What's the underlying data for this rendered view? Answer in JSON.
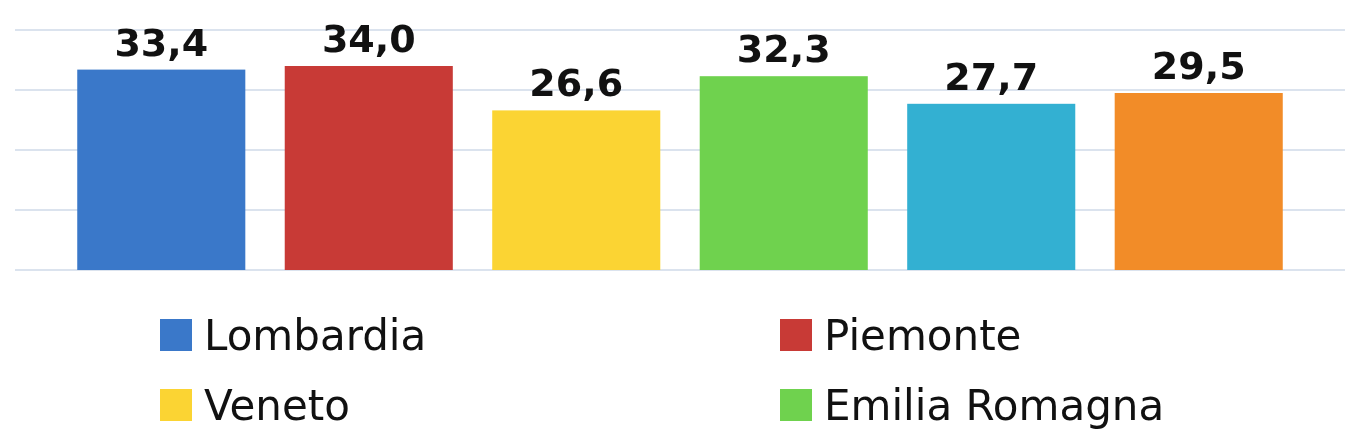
{
  "chart_data": {
    "type": "bar",
    "categories": [
      null
    ],
    "ylim": [
      0,
      40
    ],
    "yticks": [
      {
        "value": 0,
        "label": null
      },
      {
        "value": 10,
        "label": null
      },
      {
        "value": 20,
        "label": null
      },
      {
        "value": 30,
        "label": null
      },
      {
        "value": 40,
        "label": null
      }
    ],
    "grid": "y",
    "legend": "bottom",
    "series": [
      {
        "name": "Lombardia",
        "color": "#3a78c9",
        "values": [
          33.4
        ],
        "value_labels": [
          "33,4"
        ]
      },
      {
        "name": "Piemonte",
        "color": "#c83a36",
        "values": [
          34.0
        ],
        "value_labels": [
          "34,0"
        ]
      },
      {
        "name": "Veneto",
        "color": "#fbd433",
        "values": [
          26.6
        ],
        "value_labels": [
          "26,6"
        ]
      },
      {
        "name": "Emilia Romagna",
        "color": "#6fd24e",
        "values": [
          32.3
        ],
        "value_labels": [
          "32,3"
        ]
      },
      {
        "color": "#33b0d2",
        "values": [
          27.7
        ],
        "value_labels": [
          "27,7"
        ]
      },
      {
        "color": "#f28c28",
        "values": [
          29.5
        ],
        "value_labels": [
          "29,5"
        ]
      }
    ]
  }
}
